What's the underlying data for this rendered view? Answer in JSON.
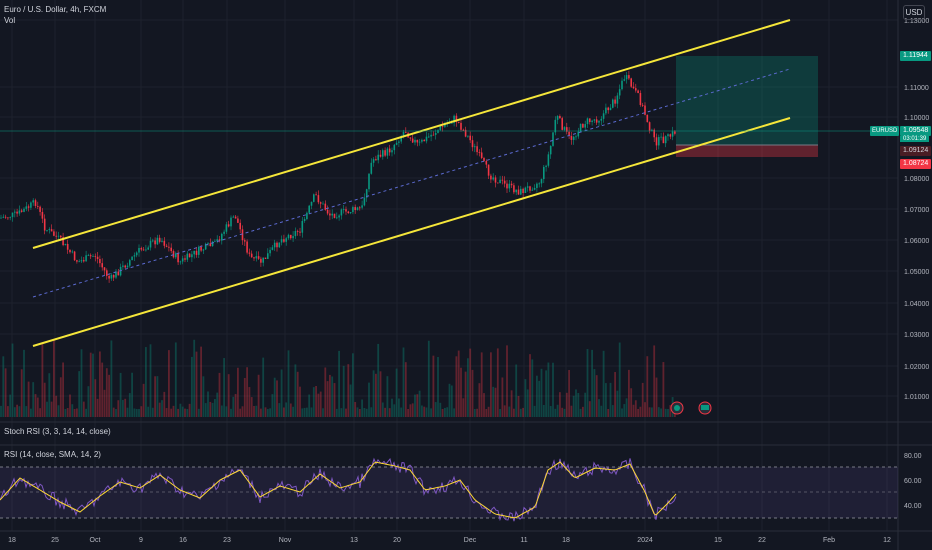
{
  "legend": {
    "symbol_line": "Euro / U.S. Dollar, 4h, FXCM",
    "volume_label": "Vol"
  },
  "currency_button": "USD",
  "price_axis": {
    "ticks": [
      "1.13000",
      "1.11000",
      "1.10000",
      "1.08000",
      "1.07000",
      "1.06000",
      "1.05000",
      "1.04000",
      "1.03000",
      "1.02000",
      "1.01000"
    ]
  },
  "price_tags": {
    "target": "1.11944",
    "current": "1.09548",
    "countdown": "03:01:39",
    "entry": "1.09124",
    "stop": "1.08724",
    "symbol": "EURUSD"
  },
  "time_axis": {
    "labels": [
      "18",
      "25",
      "Oct",
      "9",
      "16",
      "23",
      "Nov",
      "13",
      "20",
      "Dec",
      "11",
      "18",
      "2024",
      "15",
      "22",
      "Feb",
      "12"
    ]
  },
  "stoch_rsi": {
    "label": "Stoch RSI (3, 3, 14, 14, close)"
  },
  "rsi": {
    "label": "RSI (14, close, SMA, 14, 2)",
    "ticks": [
      "80.00",
      "60.00",
      "40.00"
    ]
  },
  "colors": {
    "background": "#131722",
    "up": "#089981",
    "down": "#f23645",
    "channel": "#f5e63a",
    "rsi": "#7e57c2",
    "rsi_ma": "#fdd835"
  }
}
